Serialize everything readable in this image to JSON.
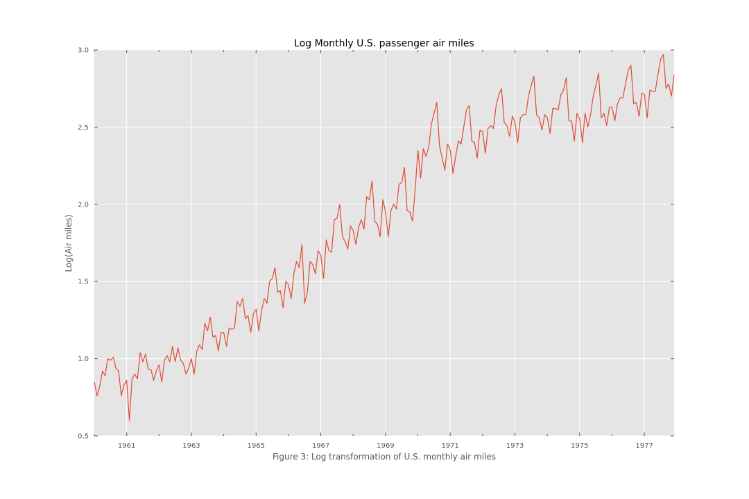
{
  "chart_data": {
    "type": "line",
    "title": "Log Monthly U.S. passenger air miles",
    "xlabel": "Figure 3: Log transformation of U.S. monthly air miles",
    "ylabel": "Log(Air miles)",
    "x_start": "1960-01",
    "x_end": "1977-12",
    "xlim": [
      1960.0,
      1977.92
    ],
    "ylim": [
      0.5,
      3.0
    ],
    "x_ticks": [
      1961,
      1963,
      1965,
      1967,
      1969,
      1971,
      1973,
      1975,
      1977
    ],
    "y_ticks": [
      0.5,
      1.0,
      1.5,
      2.0,
      2.5,
      3.0
    ],
    "y_tick_labels": [
      "0.5",
      "1.0",
      "1.5",
      "2.0",
      "2.5",
      "3.0"
    ],
    "grid": true,
    "series": [
      {
        "color": "#e24a33",
        "values": [
          0.85,
          0.76,
          0.82,
          0.92,
          0.89,
          1.0,
          0.99,
          1.01,
          0.94,
          0.92,
          0.76,
          0.83,
          0.86,
          0.6,
          0.87,
          0.9,
          0.87,
          1.04,
          0.98,
          1.03,
          0.93,
          0.93,
          0.86,
          0.92,
          0.96,
          0.85,
          0.99,
          1.02,
          0.98,
          1.08,
          0.98,
          1.07,
          0.99,
          0.97,
          0.9,
          0.94,
          1.0,
          0.9,
          1.05,
          1.09,
          1.06,
          1.23,
          1.18,
          1.27,
          1.14,
          1.15,
          1.05,
          1.17,
          1.17,
          1.08,
          1.2,
          1.19,
          1.2,
          1.37,
          1.34,
          1.39,
          1.26,
          1.28,
          1.17,
          1.29,
          1.32,
          1.18,
          1.31,
          1.39,
          1.36,
          1.5,
          1.52,
          1.59,
          1.43,
          1.44,
          1.33,
          1.5,
          1.48,
          1.39,
          1.55,
          1.63,
          1.59,
          1.74,
          1.36,
          1.43,
          1.63,
          1.61,
          1.55,
          1.7,
          1.67,
          1.52,
          1.77,
          1.7,
          1.69,
          1.9,
          1.91,
          2.0,
          1.79,
          1.76,
          1.71,
          1.86,
          1.83,
          1.74,
          1.85,
          1.9,
          1.84,
          2.05,
          2.03,
          2.15,
          1.89,
          1.87,
          1.79,
          2.03,
          1.95,
          1.79,
          1.96,
          2.0,
          1.97,
          2.13,
          2.14,
          2.24,
          1.96,
          1.95,
          1.89,
          2.1,
          2.35,
          2.17,
          2.36,
          2.31,
          2.37,
          2.52,
          2.59,
          2.66,
          2.38,
          2.3,
          2.22,
          2.39,
          2.35,
          2.2,
          2.31,
          2.41,
          2.39,
          2.5,
          2.61,
          2.64,
          2.41,
          2.4,
          2.3,
          2.48,
          2.47,
          2.33,
          2.49,
          2.51,
          2.49,
          2.64,
          2.71,
          2.75,
          2.53,
          2.51,
          2.44,
          2.57,
          2.53,
          2.4,
          2.56,
          2.58,
          2.58,
          2.7,
          2.77,
          2.83,
          2.58,
          2.56,
          2.48,
          2.58,
          2.56,
          2.46,
          2.62,
          2.62,
          2.61,
          2.71,
          2.74,
          2.82,
          2.54,
          2.54,
          2.41,
          2.59,
          2.55,
          2.4,
          2.59,
          2.5,
          2.58,
          2.7,
          2.77,
          2.85,
          2.56,
          2.59,
          2.51,
          2.63,
          2.63,
          2.54,
          2.65,
          2.69,
          2.69,
          2.78,
          2.87,
          2.9,
          2.65,
          2.66,
          2.57,
          2.72,
          2.71,
          2.56,
          2.74,
          2.73,
          2.73,
          2.84,
          2.94,
          2.97,
          2.75,
          2.78,
          2.7,
          2.84
        ]
      }
    ]
  }
}
